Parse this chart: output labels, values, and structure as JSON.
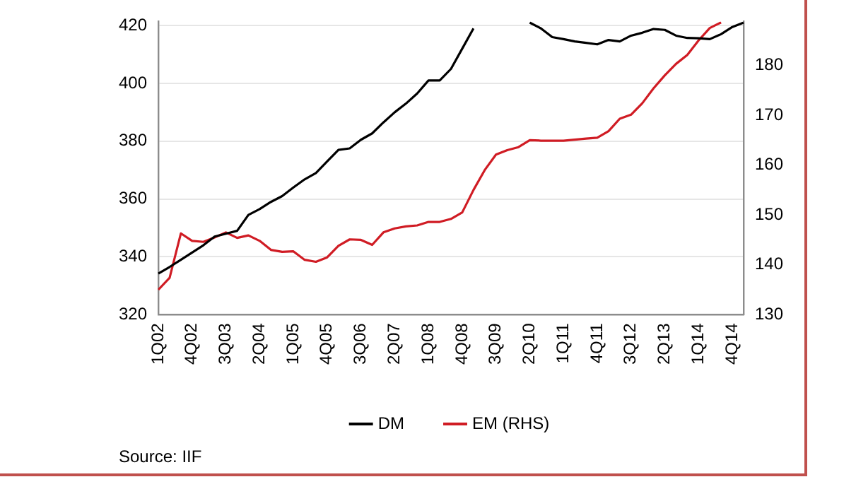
{
  "chart_data": {
    "type": "line",
    "annotations": [
      "Source: IIF"
    ],
    "categories": [
      "1Q02",
      null,
      null,
      "4Q02",
      null,
      null,
      "3Q03",
      null,
      null,
      "2Q04",
      null,
      null,
      "1Q05",
      null,
      null,
      "4Q05",
      null,
      null,
      "3Q06",
      null,
      null,
      "2Q07",
      null,
      null,
      "1Q08",
      null,
      null,
      "4Q08",
      null,
      null,
      "3Q09",
      null,
      null,
      "2Q10",
      null,
      null,
      "1Q11",
      null,
      null,
      "4Q11",
      null,
      null,
      "3Q12",
      null,
      null,
      "2Q13",
      null,
      null,
      "1Q14",
      null,
      null,
      "4Q14",
      null
    ],
    "series": [
      {
        "name": "DM",
        "color": "#000000",
        "values": [
          334.2,
          336.5,
          339,
          341.5,
          344,
          347,
          348,
          349,
          354.5,
          356.5,
          359,
          361,
          364,
          366.8,
          369,
          373,
          377,
          377.5,
          380.5,
          382.7,
          386.5,
          390,
          393,
          396.5,
          401,
          401,
          405,
          412,
          419,
          null,
          null,
          null,
          null,
          421,
          419,
          416,
          415.3,
          414.5,
          414,
          413.5,
          415,
          414.5,
          416.5,
          417.5,
          418.8,
          418.5,
          416.5,
          415.7,
          415.6,
          415.3,
          417,
          419.5,
          421
        ]
      },
      {
        "name": "EM (RHS)",
        "color": "#d01c24",
        "axis": "y2",
        "values": [
          135,
          137.4,
          146.3,
          144.8,
          144.6,
          145.5,
          146.5,
          145.4,
          145.9,
          144.8,
          143,
          142.6,
          142.7,
          141,
          140.6,
          141.5,
          143.8,
          145.1,
          145,
          144,
          146.5,
          147.3,
          147.7,
          147.9,
          148.6,
          148.6,
          149.2,
          150.5,
          155,
          159,
          162.1,
          163,
          163.6,
          165,
          164.9,
          164.9,
          164.9,
          165.1,
          165.3,
          165.5,
          166.8,
          169.3,
          170.1,
          172.4,
          175.4,
          178,
          180.3,
          182.1,
          185,
          187.5,
          188.6,
          null,
          null
        ]
      }
    ],
    "ylim": [
      320,
      421.4
    ],
    "yticks": [
      320,
      340,
      360,
      380,
      400,
      420
    ],
    "y2lim": [
      130,
      188.8
    ],
    "y2ticks": [
      130,
      140,
      150,
      160,
      170,
      180
    ],
    "grid": "y",
    "legend": "bottom",
    "marker": "none",
    "line_style": "solid"
  }
}
